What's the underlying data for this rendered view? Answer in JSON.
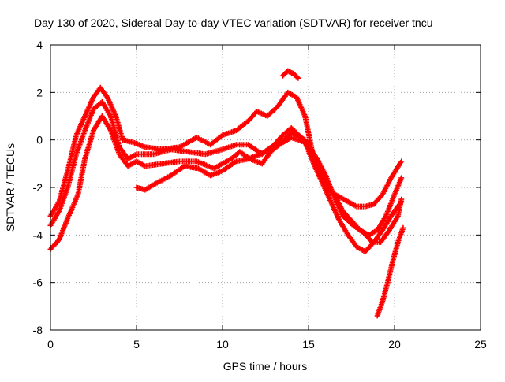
{
  "chart_data": {
    "type": "scatter",
    "title": "Day 130 of 2020, Sidereal Day-to-day VTEC variation (SDTVAR) for receiver tncu",
    "xlabel": "GPS time / hours",
    "ylabel": "SDTVAR / TECUs",
    "xlim": [
      0,
      25
    ],
    "ylim": [
      -8,
      4
    ],
    "x_ticks": [
      "0",
      "5",
      "10",
      "15",
      "20",
      "25"
    ],
    "y_ticks": [
      "-8",
      "-6",
      "-4",
      "-2",
      "0",
      "2",
      "4"
    ],
    "grid": true,
    "marker": "plus",
    "color": "#ff0000",
    "series": [
      {
        "name": "track-1",
        "points": [
          [
            0.0,
            -3.2
          ],
          [
            0.5,
            -2.6
          ],
          [
            1.0,
            -1.3
          ],
          [
            1.5,
            0.2
          ],
          [
            2.0,
            1.0
          ],
          [
            2.5,
            1.8
          ],
          [
            2.9,
            2.2
          ],
          [
            3.3,
            1.8
          ],
          [
            3.8,
            1.0
          ],
          [
            4.2,
            0.0
          ],
          [
            4.8,
            -0.1
          ],
          [
            5.5,
            -0.3
          ],
          [
            6.5,
            -0.4
          ],
          [
            7.5,
            -0.3
          ],
          [
            8.5,
            0.1
          ],
          [
            9.3,
            -0.2
          ],
          [
            10.0,
            0.2
          ],
          [
            10.8,
            0.4
          ],
          [
            11.5,
            0.8
          ],
          [
            12.0,
            1.2
          ],
          [
            12.6,
            1.0
          ],
          [
            13.2,
            1.4
          ],
          [
            13.8,
            2.0
          ],
          [
            14.3,
            1.8
          ],
          [
            14.8,
            1.0
          ],
          [
            15.3,
            -0.8
          ],
          [
            15.8,
            -1.6
          ],
          [
            16.3,
            -2.2
          ],
          [
            16.8,
            -2.4
          ],
          [
            17.3,
            -2.6
          ],
          [
            17.8,
            -2.8
          ],
          [
            18.3,
            -2.8
          ],
          [
            18.8,
            -2.7
          ],
          [
            19.3,
            -2.3
          ],
          [
            19.8,
            -1.6
          ],
          [
            20.4,
            -0.9
          ]
        ]
      },
      {
        "name": "track-2",
        "points": [
          [
            0.0,
            -3.6
          ],
          [
            0.5,
            -3.0
          ],
          [
            1.0,
            -2.0
          ],
          [
            1.5,
            -0.6
          ],
          [
            2.0,
            0.4
          ],
          [
            2.5,
            1.3
          ],
          [
            3.0,
            1.6
          ],
          [
            3.5,
            1.0
          ],
          [
            4.0,
            -0.3
          ],
          [
            4.5,
            -0.8
          ],
          [
            5.0,
            -0.6
          ],
          [
            6.0,
            -0.6
          ],
          [
            7.0,
            -0.4
          ],
          [
            8.0,
            -0.5
          ],
          [
            9.0,
            -0.6
          ],
          [
            10.0,
            -0.4
          ],
          [
            10.8,
            -0.2
          ],
          [
            11.5,
            -0.2
          ],
          [
            12.3,
            -0.6
          ],
          [
            13.0,
            -0.2
          ],
          [
            13.5,
            0.2
          ],
          [
            14.0,
            0.5
          ],
          [
            14.6,
            0.1
          ],
          [
            15.0,
            -0.3
          ],
          [
            15.5,
            -1.2
          ],
          [
            16.0,
            -1.8
          ],
          [
            16.5,
            -2.3
          ],
          [
            17.0,
            -3.0
          ],
          [
            17.5,
            -3.4
          ],
          [
            18.0,
            -3.8
          ],
          [
            18.5,
            -4.0
          ],
          [
            19.0,
            -3.8
          ],
          [
            19.5,
            -3.2
          ],
          [
            20.0,
            -2.3
          ],
          [
            20.4,
            -1.6
          ]
        ]
      },
      {
        "name": "track-3",
        "points": [
          [
            0.0,
            -4.6
          ],
          [
            0.5,
            -4.2
          ],
          [
            1.0,
            -3.3
          ],
          [
            1.6,
            -2.3
          ],
          [
            2.0,
            -0.8
          ],
          [
            2.5,
            0.4
          ],
          [
            3.0,
            1.0
          ],
          [
            3.5,
            0.4
          ],
          [
            4.0,
            -0.6
          ],
          [
            4.5,
            -1.1
          ],
          [
            5.0,
            -0.9
          ],
          [
            5.5,
            -1.1
          ],
          [
            6.5,
            -1.0
          ],
          [
            7.5,
            -0.9
          ],
          [
            8.5,
            -0.9
          ],
          [
            9.5,
            -1.2
          ],
          [
            10.5,
            -0.8
          ],
          [
            11.0,
            -0.5
          ],
          [
            11.6,
            -0.8
          ],
          [
            12.3,
            -1.0
          ],
          [
            12.8,
            -0.5
          ],
          [
            13.3,
            -0.2
          ],
          [
            14.0,
            0.1
          ],
          [
            14.8,
            -0.1
          ],
          [
            15.3,
            -1.0
          ],
          [
            15.8,
            -1.8
          ],
          [
            16.3,
            -2.6
          ],
          [
            16.8,
            -3.4
          ],
          [
            17.3,
            -4.0
          ],
          [
            17.8,
            -4.5
          ],
          [
            18.3,
            -4.7
          ],
          [
            18.8,
            -4.3
          ],
          [
            19.3,
            -3.8
          ],
          [
            19.8,
            -3.2
          ],
          [
            20.4,
            -2.6
          ]
        ]
      },
      {
        "name": "track-4",
        "points": [
          [
            5.0,
            -2.0
          ],
          [
            5.5,
            -2.1
          ],
          [
            6.2,
            -1.8
          ],
          [
            7.0,
            -1.5
          ],
          [
            7.8,
            -1.1
          ],
          [
            8.6,
            -1.2
          ],
          [
            9.3,
            -1.5
          ],
          [
            10.0,
            -1.3
          ],
          [
            10.8,
            -0.9
          ],
          [
            11.5,
            -0.8
          ],
          [
            12.2,
            -0.6
          ],
          [
            12.9,
            -0.3
          ],
          [
            13.4,
            -0.1
          ],
          [
            14.0,
            0.3
          ],
          [
            14.8,
            0.0
          ],
          [
            15.5,
            -0.8
          ],
          [
            16.0,
            -1.5
          ],
          [
            16.5,
            -2.4
          ],
          [
            17.0,
            -3.2
          ],
          [
            17.6,
            -3.6
          ],
          [
            18.2,
            -3.9
          ],
          [
            18.7,
            -4.3
          ],
          [
            19.2,
            -4.3
          ],
          [
            19.7,
            -3.8
          ],
          [
            20.2,
            -3.2
          ],
          [
            20.4,
            -2.5
          ]
        ]
      },
      {
        "name": "track-5",
        "points": [
          [
            13.5,
            2.7
          ],
          [
            13.8,
            2.9
          ],
          [
            14.1,
            2.8
          ],
          [
            14.4,
            2.6
          ]
        ]
      },
      {
        "name": "track-6",
        "points": [
          [
            19.0,
            -7.4
          ],
          [
            19.3,
            -6.8
          ],
          [
            19.6,
            -6.0
          ],
          [
            19.9,
            -5.1
          ],
          [
            20.2,
            -4.3
          ],
          [
            20.5,
            -3.7
          ]
        ]
      }
    ]
  }
}
